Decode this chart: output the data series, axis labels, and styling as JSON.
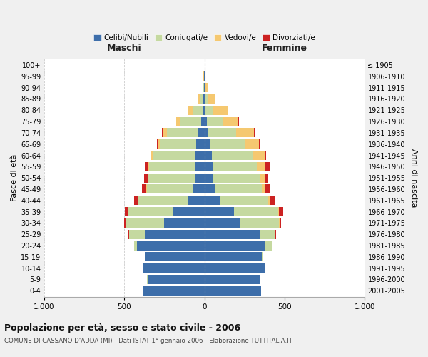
{
  "age_groups": [
    "0-4",
    "5-9",
    "10-14",
    "15-19",
    "20-24",
    "25-29",
    "30-34",
    "35-39",
    "40-44",
    "45-49",
    "50-54",
    "55-59",
    "60-64",
    "65-69",
    "70-74",
    "75-79",
    "80-84",
    "85-89",
    "90-94",
    "95-99",
    "100+"
  ],
  "birth_years": [
    "2001-2005",
    "1996-2000",
    "1991-1995",
    "1986-1990",
    "1981-1985",
    "1976-1980",
    "1971-1975",
    "1966-1970",
    "1961-1965",
    "1956-1960",
    "1951-1955",
    "1946-1950",
    "1941-1945",
    "1936-1940",
    "1931-1935",
    "1926-1930",
    "1921-1925",
    "1916-1920",
    "1911-1915",
    "1906-1910",
    "≤ 1905"
  ],
  "males": {
    "celibi": [
      380,
      355,
      380,
      370,
      420,
      370,
      250,
      200,
      100,
      70,
      55,
      55,
      55,
      50,
      40,
      20,
      10,
      5,
      2,
      1,
      0
    ],
    "coniugati": [
      0,
      1,
      1,
      3,
      20,
      100,
      240,
      275,
      310,
      290,
      295,
      290,
      265,
      225,
      195,
      135,
      60,
      18,
      5,
      2,
      0
    ],
    "vedovi": [
      0,
      0,
      0,
      0,
      0,
      1,
      2,
      3,
      5,
      5,
      5,
      5,
      10,
      15,
      25,
      20,
      30,
      15,
      4,
      2,
      0
    ],
    "divorziati": [
      0,
      0,
      0,
      0,
      0,
      3,
      10,
      18,
      25,
      25,
      22,
      22,
      8,
      5,
      3,
      0,
      0,
      0,
      0,
      0,
      0
    ]
  },
  "females": {
    "nubili": [
      355,
      345,
      375,
      360,
      380,
      345,
      225,
      185,
      100,
      70,
      55,
      50,
      45,
      35,
      25,
      14,
      8,
      4,
      2,
      1,
      0
    ],
    "coniugate": [
      0,
      1,
      2,
      5,
      40,
      95,
      240,
      275,
      300,
      290,
      290,
      275,
      255,
      215,
      175,
      105,
      45,
      15,
      4,
      2,
      0
    ],
    "vedove": [
      0,
      0,
      0,
      0,
      1,
      2,
      3,
      5,
      10,
      20,
      30,
      50,
      75,
      90,
      110,
      90,
      90,
      45,
      12,
      5,
      0
    ],
    "divorziate": [
      0,
      0,
      0,
      0,
      0,
      3,
      10,
      25,
      30,
      30,
      25,
      30,
      12,
      10,
      5,
      5,
      2,
      0,
      0,
      0,
      0
    ]
  },
  "colors": {
    "celibi_nubili": "#3d6eaa",
    "coniugati": "#c5d9a0",
    "vedovi": "#f5c870",
    "divorziati": "#cc2222"
  },
  "title": "Popolazione per età, sesso e stato civile - 2006",
  "subtitle": "COMUNE DI CASSANO D'ADDA (MI) - Dati ISTAT 1° gennaio 2006 - Elaborazione TUTTITALIA.IT",
  "xlabel_left": "Maschi",
  "xlabel_right": "Femmine",
  "ylabel_left": "Fasce di età",
  "ylabel_right": "Anni di nascita",
  "xlim": 1000,
  "legend_labels": [
    "Celibi/Nubili",
    "Coniugati/e",
    "Vedovi/e",
    "Divorziati/e"
  ],
  "background_color": "#f0f0f0",
  "plot_bg": "#ffffff"
}
